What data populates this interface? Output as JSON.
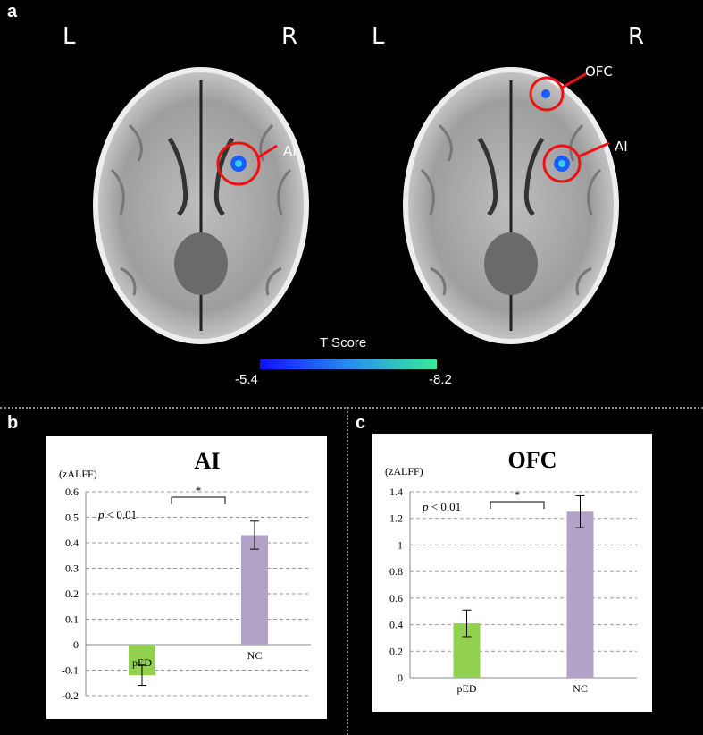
{
  "figure": {
    "panel_a": "a",
    "panel_b": "b",
    "panel_c": "c",
    "left_label": "L",
    "right_label": "R",
    "region_ai": "AI",
    "region_ofc": "OFC"
  },
  "colorbar": {
    "title": "T Score",
    "min_label": "-5.4",
    "max_label": "-8.2",
    "colors": [
      "#1010ff",
      "#2a8cf0",
      "#33ee9a"
    ]
  },
  "chart_data": [
    {
      "type": "bar",
      "title": "AI",
      "ylabel": "(zALFF)",
      "categories": [
        "pED",
        "NC"
      ],
      "values": [
        -0.12,
        0.43
      ],
      "errors": [
        0.04,
        0.055
      ],
      "bar_colors": [
        "#92d050",
        "#b3a2c7"
      ],
      "ylim": [
        -0.2,
        0.6
      ],
      "yticks": [
        -0.2,
        -0.1,
        0,
        0.1,
        0.2,
        0.3,
        0.4,
        0.5,
        0.6
      ],
      "ytick_labels": [
        "-0.2",
        "-0.1",
        "0",
        "0.1",
        "0.2",
        "0.3",
        "0.4",
        "0.5",
        "0.6"
      ],
      "annotation_p": "p",
      "annotation_rest": " < 0.01",
      "significance": "*",
      "grid": "dashed"
    },
    {
      "type": "bar",
      "title": "OFC",
      "ylabel": "(zALFF)",
      "categories": [
        "pED",
        "NC"
      ],
      "values": [
        0.41,
        1.25
      ],
      "errors": [
        0.1,
        0.12
      ],
      "bar_colors": [
        "#92d050",
        "#b3a2c7"
      ],
      "ylim": [
        0,
        1.4
      ],
      "yticks": [
        0,
        0.2,
        0.4,
        0.6,
        0.8,
        1.0,
        1.2,
        1.4
      ],
      "ytick_labels": [
        "0",
        "0.2",
        "0.4",
        "0.6",
        "0.8",
        "1",
        "1.2",
        "1.4"
      ],
      "annotation_p": "p",
      "annotation_rest": " < 0.01",
      "significance": "*",
      "grid": "dashed"
    }
  ]
}
